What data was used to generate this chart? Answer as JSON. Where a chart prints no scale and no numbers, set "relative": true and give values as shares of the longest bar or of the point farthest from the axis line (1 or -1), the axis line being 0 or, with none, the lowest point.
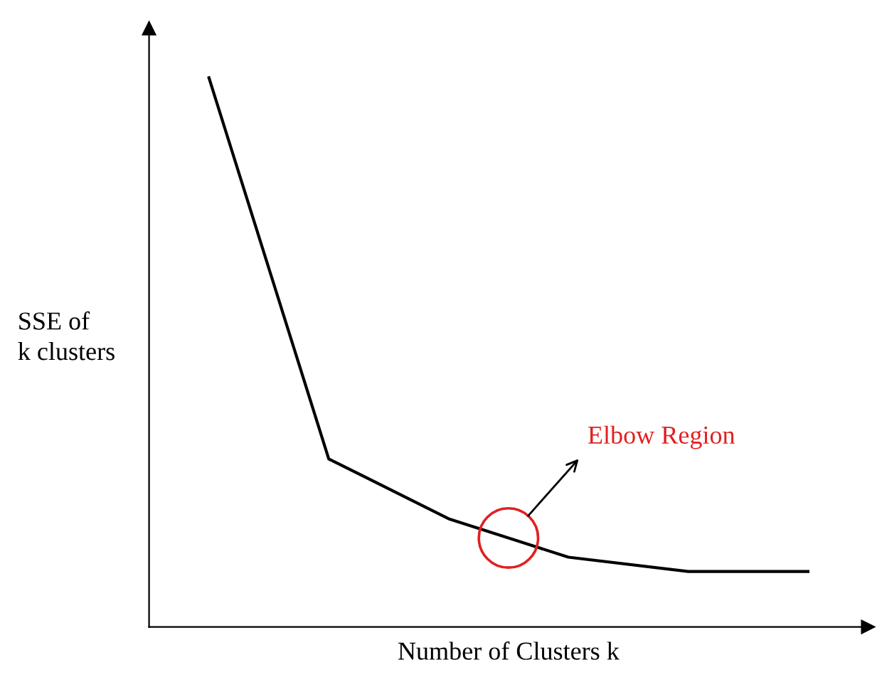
{
  "chart_data": {
    "type": "line",
    "relative": true,
    "xlabel": "Number of Clusters k",
    "ylabel": "SSE of\nk clusters",
    "categories": [
      null,
      null,
      null,
      null,
      null,
      null
    ],
    "series": [
      {
        "color": "#000000",
        "values": [
          1,
          0.306,
          0.197,
          0.127,
          0.101,
          0.101
        ]
      }
    ],
    "annotations": [
      "Elbow Region"
    ],
    "marker": "none",
    "line_style": "solid",
    "legend": false
  }
}
